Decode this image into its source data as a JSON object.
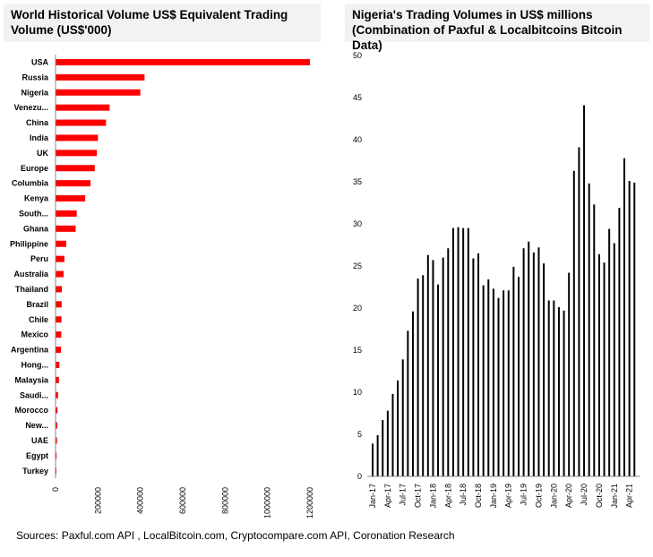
{
  "chart_data": [
    {
      "type": "bar",
      "orientation": "horizontal",
      "title": "World Historical Volume US$ Equivalent Trading Volume (US$'000)",
      "categories": [
        "USA",
        "Russia",
        "Nigeria",
        "Venezu...",
        "China",
        "India",
        "UK",
        "Europe",
        "Columbia",
        "Kenya",
        "South...",
        "Ghana",
        "Philippine",
        "Peru",
        "Australia",
        "Thailand",
        "Brazil",
        "Chile",
        "Mexico",
        "Argentina",
        "Hong...",
        "Malaysia",
        "Saudi...",
        "Morocco",
        "New...",
        "UAE",
        "Egypt",
        "Turkey"
      ],
      "values": [
        1200000,
        420000,
        400000,
        255000,
        238000,
        200000,
        195000,
        185000,
        165000,
        140000,
        100000,
        95000,
        50000,
        42000,
        38000,
        30000,
        29000,
        28000,
        27000,
        26000,
        18000,
        16000,
        12000,
        9000,
        8000,
        7000,
        5000,
        4000
      ],
      "xlim": [
        0,
        1200000
      ],
      "xticks": [
        "0",
        "200000",
        "400000",
        "600000",
        "800000",
        "1000000",
        "1200000"
      ],
      "color": "#ff0000"
    },
    {
      "type": "bar",
      "title": "Nigeria's Trading Volumes in US$ millions (Combination of Paxful & Localbitcoins Bitcoin Data)",
      "xticks": [
        "Jan-17",
        "Apr-17",
        "Jul-17",
        "Oct-17",
        "Jan-18",
        "Apr-18",
        "Jul-18",
        "Oct-18",
        "Jan-19",
        "Apr-19",
        "Jul-19",
        "Oct-19",
        "Jan-20",
        "Apr-20",
        "Jul-20",
        "Oct-20",
        "Jan-21",
        "Apr-21"
      ],
      "categories": [
        "Jan-17",
        "Feb-17",
        "Mar-17",
        "Apr-17",
        "May-17",
        "Jun-17",
        "Jul-17",
        "Aug-17",
        "Sep-17",
        "Oct-17",
        "Nov-17",
        "Dec-17",
        "Jan-18",
        "Feb-18",
        "Mar-18",
        "Apr-18",
        "May-18",
        "Jun-18",
        "Jul-18",
        "Aug-18",
        "Sep-18",
        "Oct-18",
        "Nov-18",
        "Dec-18",
        "Jan-19",
        "Feb-19",
        "Mar-19",
        "Apr-19",
        "May-19",
        "Jun-19",
        "Jul-19",
        "Aug-19",
        "Sep-19",
        "Oct-19",
        "Nov-19",
        "Dec-19",
        "Jan-20",
        "Feb-20",
        "Mar-20",
        "Apr-20",
        "May-20",
        "Jun-20",
        "Jul-20",
        "Aug-20",
        "Sep-20",
        "Oct-20",
        "Nov-20",
        "Dec-20",
        "Jan-21",
        "Feb-21",
        "Mar-21",
        "Apr-21",
        "May-21"
      ],
      "values": [
        3.9,
        4.9,
        6.7,
        7.8,
        9.8,
        11.4,
        13.9,
        17.3,
        19.6,
        23.5,
        23.9,
        26.3,
        25.7,
        22.8,
        26.0,
        27.1,
        29.5,
        29.6,
        29.5,
        29.5,
        25.9,
        26.5,
        22.7,
        23.4,
        22.3,
        21.2,
        22.1,
        22.1,
        24.9,
        23.7,
        27.1,
        27.9,
        26.6,
        27.2,
        25.3,
        20.9,
        20.9,
        20.1,
        19.7,
        24.2,
        36.3,
        39.1,
        44.1,
        34.8,
        32.3,
        26.4,
        25.4,
        29.4,
        27.7,
        31.9,
        37.8,
        35.1,
        34.9
      ],
      "ylim": [
        0,
        50
      ],
      "yticks": [
        "0",
        "5",
        "10",
        "15",
        "20",
        "25",
        "30",
        "35",
        "40",
        "45",
        "50"
      ],
      "color": "#000000"
    }
  ],
  "left_title": "World Historical Volume US$ Equivalent Trading Volume (US$'000)",
  "right_title": "Nigeria's Trading Volumes in US$ millions (Combination of Paxful & Localbitcoins Bitcoin Data)",
  "source": "Sources: Paxful.com API , LocalBitcoin.com, Cryptocompare.com API, Coronation Research"
}
